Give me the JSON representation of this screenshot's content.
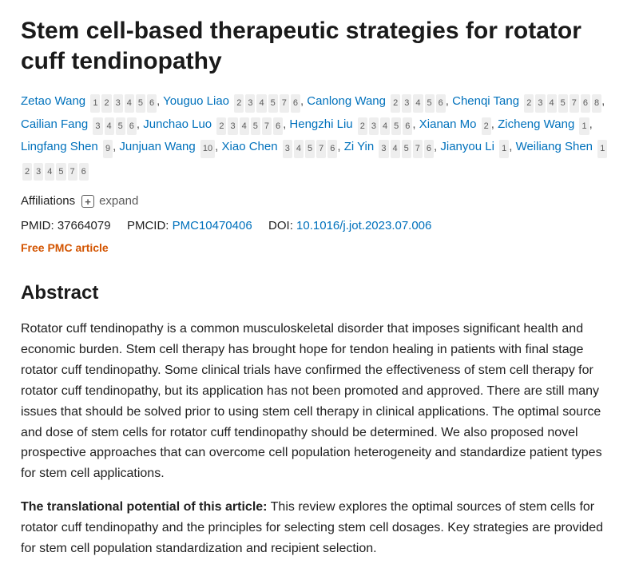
{
  "title": "Stem cell-based therapeutic strategies for rotator cuff tendinopathy",
  "authors": [
    {
      "name": "Zetao Wang",
      "affs": [
        "1",
        "2",
        "3",
        "4",
        "5",
        "6"
      ]
    },
    {
      "name": "Youguo Liao",
      "affs": [
        "2",
        "3",
        "4",
        "5",
        "7",
        "6"
      ]
    },
    {
      "name": "Canlong Wang",
      "affs": [
        "2",
        "3",
        "4",
        "5",
        "6"
      ]
    },
    {
      "name": "Chenqi Tang",
      "affs": [
        "2",
        "3",
        "4",
        "5",
        "7",
        "6",
        "8"
      ]
    },
    {
      "name": "Cailian Fang",
      "affs": [
        "3",
        "4",
        "5",
        "6"
      ]
    },
    {
      "name": "Junchao Luo",
      "affs": [
        "2",
        "3",
        "4",
        "5",
        "7",
        "6"
      ]
    },
    {
      "name": "Hengzhi Liu",
      "affs": [
        "2",
        "3",
        "4",
        "5",
        "6"
      ]
    },
    {
      "name": "Xianan Mo",
      "affs": [
        "2"
      ]
    },
    {
      "name": "Zicheng Wang",
      "affs": [
        "1"
      ]
    },
    {
      "name": "Lingfang Shen",
      "affs": [
        "9"
      ]
    },
    {
      "name": "Junjuan Wang",
      "affs": [
        "10"
      ]
    },
    {
      "name": "Xiao Chen",
      "affs": [
        "3",
        "4",
        "5",
        "7",
        "6"
      ]
    },
    {
      "name": "Zi Yin",
      "affs": [
        "3",
        "4",
        "5",
        "7",
        "6"
      ]
    },
    {
      "name": "Jianyou Li",
      "affs": [
        "1"
      ]
    },
    {
      "name": "Weiliang Shen",
      "affs": [
        "1",
        "2",
        "3",
        "4",
        "5",
        "7",
        "6"
      ]
    }
  ],
  "affiliations_label": "Affiliations",
  "expand_label": "expand",
  "pmid_label": "PMID:",
  "pmid": "37664079",
  "pmcid_label": "PMCID:",
  "pmcid": "PMC10470406",
  "doi_label": "DOI:",
  "doi": "10.1016/j.jot.2023.07.006",
  "free_pmc": "Free PMC article",
  "abstract_heading": "Abstract",
  "abstract_p1": "Rotator cuff tendinopathy is a common musculoskeletal disorder that imposes significant health and economic burden. Stem cell therapy has brought hope for tendon healing in patients with final stage rotator cuff tendinopathy. Some clinical trials have confirmed the effectiveness of stem cell therapy for rotator cuff tendinopathy, but its application has not been promoted and approved. There are still many issues that should be solved prior to using stem cell therapy in clinical applications. The optimal source and dose of stem cells for rotator cuff tendinopathy should be determined. We also proposed novel prospective approaches that can overcome cell population heterogeneity and standardize patient types for stem cell applications.",
  "translational_label": "The translational potential of this article:",
  "abstract_p2": " This review explores the optimal sources of stem cells for rotator cuff tendinopathy and the principles for selecting stem cell dosages. Key strategies are provided for stem cell population standardization and recipient selection."
}
